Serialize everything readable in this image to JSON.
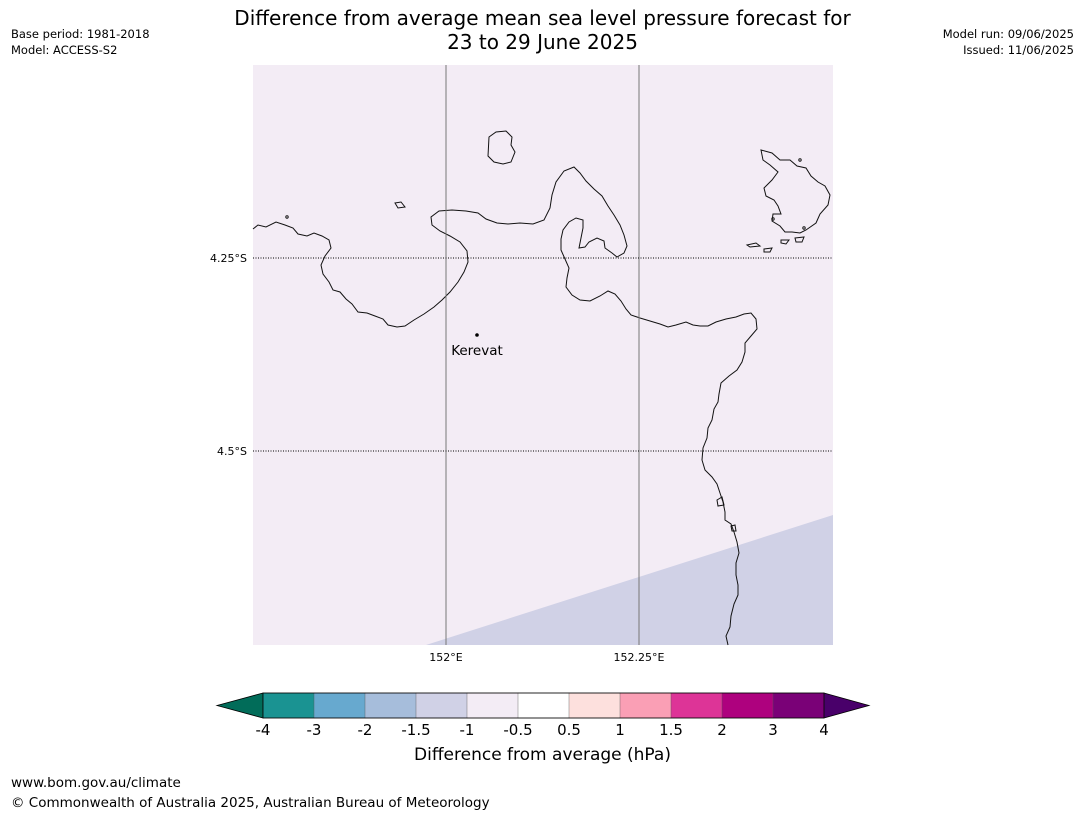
{
  "title_line1": "Difference from average mean sea level pressure forecast for",
  "title_line2": "23 to 29 June 2025",
  "meta_left": [
    "Base period: 1981-2018",
    "Model: ACCESS-S2"
  ],
  "meta_right": [
    "Model run: 09/06/2025",
    "Issued: 11/06/2025"
  ],
  "map": {
    "background_color": "#f3ecf5",
    "lower_band_color": "#d0d1e6",
    "lon_ticks": [
      "152°E",
      "152.25°E"
    ],
    "lat_ticks": [
      "4.25°S",
      "4.5°S"
    ],
    "place": "Kerevat"
  },
  "colorbar": {
    "title": "Difference from average (hPa)",
    "tick_labels": [
      "-4",
      "-3",
      "-2",
      "-1.5",
      "-1",
      "-0.5",
      "0.5",
      "1",
      "1.5",
      "2",
      "3",
      "4"
    ],
    "colors": [
      "#1a9392",
      "#67a9cf",
      "#a6bddb",
      "#d0d1e6",
      "#f3ecf5",
      "#ffffff",
      "#fde0dd",
      "#fa9fb5",
      "#dd3497",
      "#ae017e",
      "#7a0177"
    ],
    "under_color": "#016c59",
    "over_color": "#49006a"
  },
  "footer": {
    "url": "www.bom.gov.au/climate",
    "copyright": "© Commonwealth of Australia 2025, Australian Bureau of Meteorology"
  }
}
